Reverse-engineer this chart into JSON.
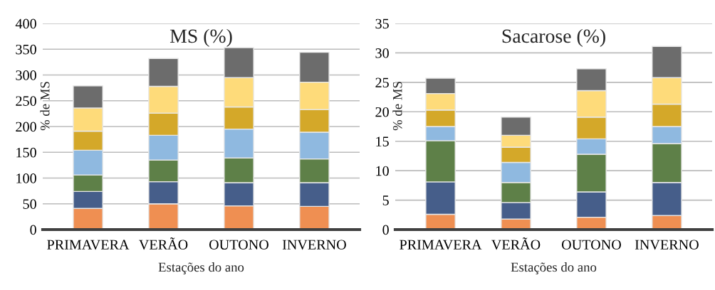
{
  "chart_data": [
    {
      "type": "bar",
      "stacked": true,
      "title": "MS (%)",
      "xlabel": "Estações do ano",
      "ylabel": "% de MS",
      "categories": [
        "PRIMAVERA",
        "VERÃO",
        "OUTONO",
        "INVERNO"
      ],
      "ylim": [
        0,
        400
      ],
      "yticks": [
        0,
        50,
        100,
        150,
        200,
        250,
        300,
        350,
        400
      ],
      "grid": "y",
      "series": [
        {
          "color": "#ef8f52",
          "values": [
            41,
            50,
            46,
            45
          ]
        },
        {
          "color": "#465e8a",
          "values": [
            33,
            43,
            45,
            46
          ]
        },
        {
          "color": "#5e8048",
          "values": [
            32,
            42,
            48,
            46
          ]
        },
        {
          "color": "#8fb9e0",
          "values": [
            48,
            48,
            56,
            52
          ]
        },
        {
          "color": "#d4a829",
          "values": [
            37,
            43,
            43,
            44
          ]
        },
        {
          "color": "#fedb7a",
          "values": [
            45,
            52,
            57,
            53
          ]
        },
        {
          "color": "#6c6c6c",
          "values": [
            43,
            54,
            58,
            58
          ]
        }
      ]
    },
    {
      "type": "bar",
      "stacked": true,
      "title": "Sacarose (%)",
      "xlabel": "Estações do ano",
      "ylabel": "% de MS",
      "categories": [
        "PRIMAVERA",
        "VERÃO",
        "OUTONO",
        "INVERNO"
      ],
      "ylim": [
        0,
        35
      ],
      "yticks": [
        0,
        5,
        10,
        15,
        20,
        25,
        30,
        35
      ],
      "grid": "y",
      "series": [
        {
          "color": "#ef8f52",
          "values": [
            2.6,
            1.8,
            2.1,
            2.4
          ]
        },
        {
          "color": "#465e8a",
          "values": [
            5.5,
            2.8,
            4.3,
            5.6
          ]
        },
        {
          "color": "#5e8048",
          "values": [
            7.0,
            3.4,
            6.4,
            6.6
          ]
        },
        {
          "color": "#8fb9e0",
          "values": [
            2.4,
            3.4,
            2.6,
            2.9
          ]
        },
        {
          "color": "#d4a829",
          "values": [
            2.8,
            2.6,
            3.7,
            3.8
          ]
        },
        {
          "color": "#fedb7a",
          "values": [
            2.8,
            2.0,
            4.5,
            4.5
          ]
        },
        {
          "color": "#6c6c6c",
          "values": [
            2.6,
            3.1,
            3.7,
            5.3
          ]
        }
      ]
    }
  ]
}
